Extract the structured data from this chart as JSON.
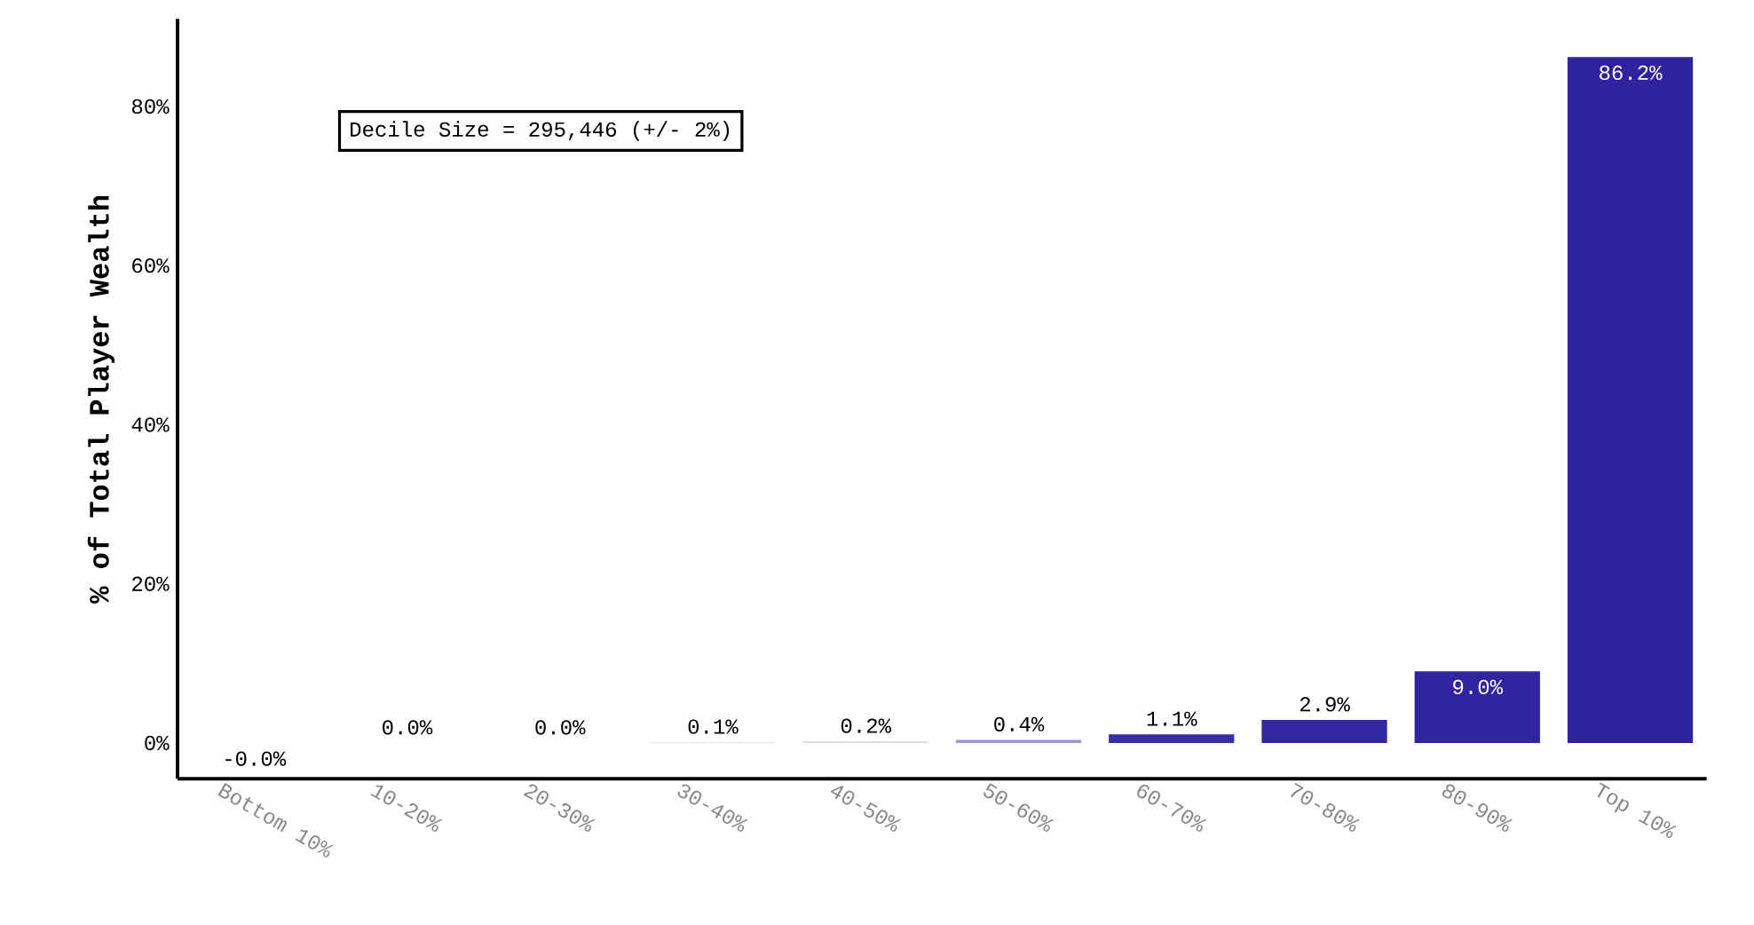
{
  "chart_data": {
    "type": "bar",
    "ylabel": "% of Total Player Wealth",
    "categories": [
      "Bottom 10%",
      "10-20%",
      "20-30%",
      "30-40%",
      "40-50%",
      "50-60%",
      "60-70%",
      "70-80%",
      "80-90%",
      "Top 10%"
    ],
    "values": [
      -0.01,
      0.01,
      0.01,
      0.1,
      0.2,
      0.4,
      1.1,
      2.9,
      9.0,
      86.2
    ],
    "value_labels": [
      "-0.0%",
      "0.0%",
      "0.0%",
      "0.1%",
      "0.2%",
      "0.4%",
      "1.1%",
      "2.9%",
      "9.0%",
      "86.2%"
    ],
    "colors": [
      "#ecebf8",
      "#ebeaf8",
      "#ebeaf8",
      "#e4e2f6",
      "#d8d5f1",
      "#9b93dc",
      "#3a2ea6",
      "#3226a2",
      "#3024a0",
      "#2e229f"
    ],
    "ylim": [
      -4.5,
      91
    ],
    "yticks": [
      {
        "value": 0,
        "label": "0%"
      },
      {
        "value": 20,
        "label": "20%"
      },
      {
        "value": 40,
        "label": "40%"
      },
      {
        "value": 60,
        "label": "60%"
      },
      {
        "value": 80,
        "label": "80%"
      }
    ],
    "annotations": [
      "Decile Size = 295,446 (+/- 2%)"
    ]
  }
}
